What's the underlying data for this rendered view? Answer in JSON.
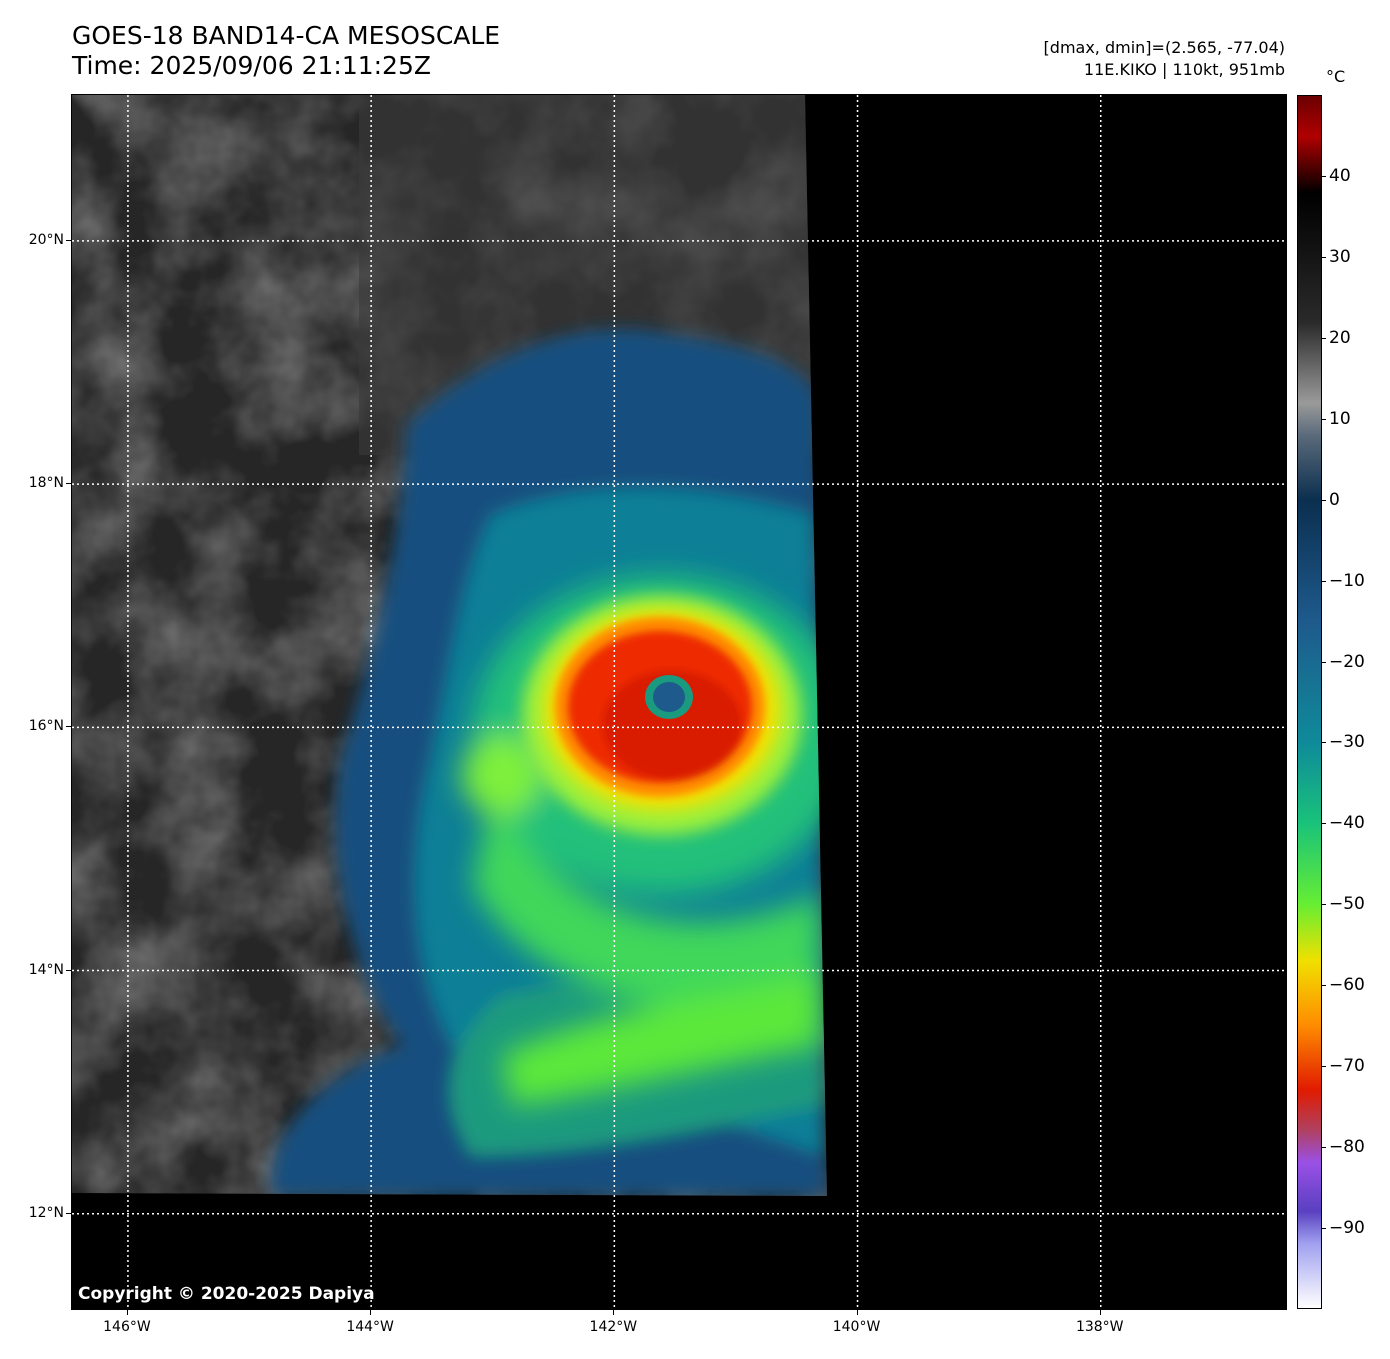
{
  "title": {
    "line1": "GOES-18 BAND14-CA MESOSCALE",
    "line2": "Time: 2025/09/06 21:11:25Z"
  },
  "info": {
    "line1": "[dmax, dmin]=(2.565, -77.04)",
    "line2": "11E.KIKO | 110kt, 951mb"
  },
  "storm": {
    "id": "11E.KIKO",
    "intensity_kt": 110,
    "pressure_mb": 951,
    "dmax": 2.565,
    "dmin": -77.04
  },
  "map": {
    "lat_range": [
      11.2,
      21.2
    ],
    "lon_range": [
      -146.46,
      -136.46
    ],
    "latitude_labels": [
      {
        "value": 20,
        "text": "20°N"
      },
      {
        "value": 18,
        "text": "18°N"
      },
      {
        "value": 16,
        "text": "16°N"
      },
      {
        "value": 14,
        "text": "14°N"
      },
      {
        "value": 12,
        "text": "12°N"
      }
    ],
    "longitude_labels": [
      {
        "value": -146,
        "text": "146°W"
      },
      {
        "value": -144,
        "text": "144°W"
      },
      {
        "value": -142,
        "text": "142°W"
      },
      {
        "value": -140,
        "text": "140°W"
      },
      {
        "value": -138,
        "text": "138°W"
      }
    ],
    "gridlines": "dotted white",
    "storm_eye": {
      "lat": 16.2,
      "lon": -141.55
    },
    "copyright": "Copyright © 2020-2025 Dapiya"
  },
  "colorbar": {
    "unit": "°C",
    "range": [
      -100,
      50
    ],
    "ticks": [
      {
        "value": 40,
        "text": "40"
      },
      {
        "value": 30,
        "text": "30"
      },
      {
        "value": 20,
        "text": "20"
      },
      {
        "value": 10,
        "text": "10"
      },
      {
        "value": 0,
        "text": "0"
      },
      {
        "value": -10,
        "text": "−10"
      },
      {
        "value": -20,
        "text": "−20"
      },
      {
        "value": -30,
        "text": "−30"
      },
      {
        "value": -40,
        "text": "−40"
      },
      {
        "value": -50,
        "text": "−50"
      },
      {
        "value": -60,
        "text": "−60"
      },
      {
        "value": -70,
        "text": "−70"
      },
      {
        "value": -80,
        "text": "−80"
      },
      {
        "value": -90,
        "text": "−90"
      }
    ],
    "colors": {
      "warm_top": "#6b0000",
      "warm_mid": "#000000",
      "gray": "#9a9a9a",
      "navy": "#0b2f4f",
      "blue": "#1e5a8c",
      "teal": "#0f8a9a",
      "green": "#19c27a",
      "lime": "#66ee33",
      "yellow": "#f0e000",
      "orange": "#ff8c00",
      "red": "#e01b00",
      "purple": "#9a50e6",
      "white": "#ffffff"
    }
  }
}
